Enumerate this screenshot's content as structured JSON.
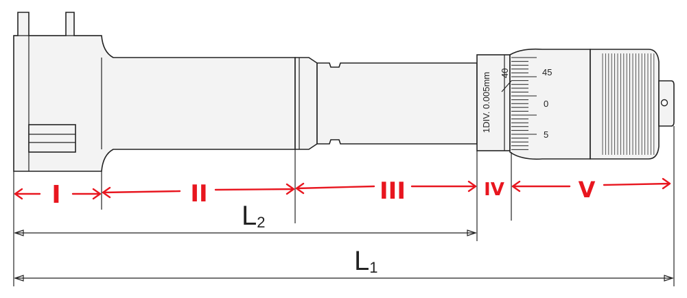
{
  "thimble_scale": {
    "division_label": "1DIV. 0.005mm",
    "top_value": "40",
    "values": [
      "45",
      "0",
      "5"
    ]
  },
  "segments": [
    {
      "label": "I"
    },
    {
      "label": "II"
    },
    {
      "label": "III"
    },
    {
      "label": "IV"
    },
    {
      "label": "V"
    }
  ],
  "dimensions": {
    "L2": {
      "main": "L",
      "sub": "2"
    },
    "L1": {
      "main": "L",
      "sub": "1"
    }
  },
  "colors": {
    "annotation": "#e8161f",
    "outline": "#222222",
    "fill": "#f3f3f3"
  }
}
